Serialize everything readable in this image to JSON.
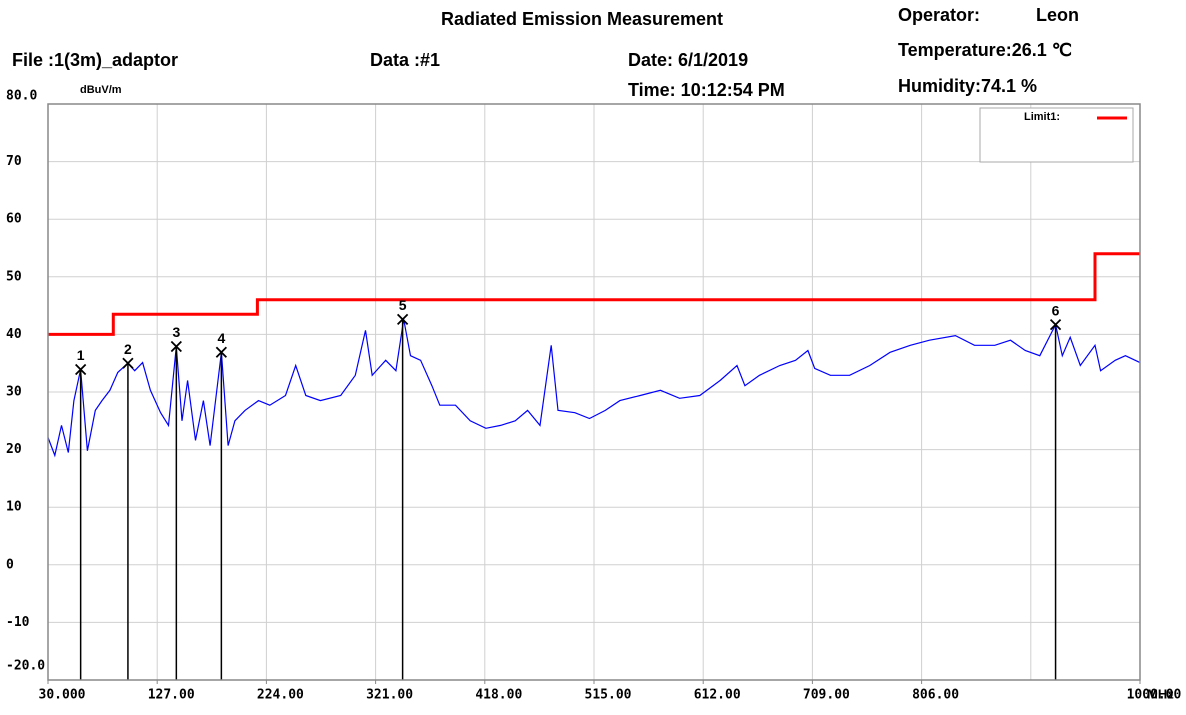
{
  "chart_data": {
    "type": "line",
    "title": "Radiated Emission Measurement",
    "header": {
      "file": "File :1(3m)_adaptor",
      "data": "Data :#1",
      "date": "Date: 6/1/2019",
      "time": "Time: 10:12:54 PM",
      "operator_label": "Operator:",
      "operator": "Leon",
      "temperature": "Temperature:26.1 ℃",
      "humidity": "Humidity:74.1 %"
    },
    "y_label": "dBuV/m",
    "x_label": "MHz",
    "xlim": [
      30,
      1000
    ],
    "ylim": [
      -20,
      80
    ],
    "yticks": [
      {
        "value": 80,
        "label": "80.0"
      },
      70,
      60,
      50,
      40,
      30,
      20,
      10,
      0,
      -10,
      {
        "value": -20,
        "label": "-20.0"
      }
    ],
    "xgrid": [
      30,
      127,
      224,
      321,
      418,
      515,
      612,
      709,
      806,
      903,
      1000
    ],
    "xticks": [
      {
        "value": 30,
        "label": "30.000"
      },
      {
        "value": 127,
        "label": "127.00"
      },
      {
        "value": 224,
        "label": "224.00"
      },
      {
        "value": 321,
        "label": "321.00"
      },
      {
        "value": 418,
        "label": "418.00"
      },
      {
        "value": 515,
        "label": "515.00"
      },
      {
        "value": 612,
        "label": "612.00"
      },
      {
        "value": 709,
        "label": "709.00"
      },
      {
        "value": 806,
        "label": "806.00"
      },
      {
        "value": 1000,
        "label": "1000.00"
      }
    ],
    "grid": true,
    "legend": "top-right",
    "series": [
      {
        "color": "#0000ff",
        "x": [
          30,
          36,
          42,
          48,
          53,
          59,
          65,
          72,
          78,
          85,
          92,
          101,
          107,
          114,
          121,
          130,
          137,
          144,
          149,
          154,
          161,
          168,
          174,
          184,
          190,
          196,
          205,
          217,
          227,
          241,
          250,
          259,
          272,
          290,
          303,
          312,
          318,
          330,
          339,
          346,
          352,
          361,
          371,
          378,
          392,
          405,
          419,
          432,
          445,
          456,
          467,
          477,
          483,
          498,
          511,
          525,
          538,
          556,
          574,
          591,
          609,
          627,
          642,
          649,
          662,
          680,
          694,
          705,
          711,
          725,
          742,
          760,
          778,
          796,
          813,
          836,
          853,
          871,
          885,
          898,
          911,
          925,
          931,
          938,
          947,
          960,
          965,
          978,
          987,
          1000
        ],
        "values": [
          22.1,
          19.0,
          24.2,
          19.5,
          28.5,
          33.9,
          19.8,
          26.8,
          28.5,
          30.3,
          33.4,
          35.0,
          33.7,
          35.1,
          30.3,
          26.4,
          24.2,
          37.9,
          25.0,
          32.0,
          21.6,
          28.5,
          20.7,
          36.9,
          20.7,
          25.0,
          26.8,
          28.5,
          27.7,
          29.4,
          34.6,
          29.4,
          28.5,
          29.4,
          32.9,
          40.7,
          32.9,
          35.5,
          33.7,
          42.6,
          36.3,
          35.5,
          31.1,
          27.7,
          27.7,
          25.0,
          23.7,
          24.2,
          25.0,
          26.8,
          24.2,
          38.1,
          26.8,
          26.4,
          25.4,
          26.8,
          28.5,
          29.4,
          30.3,
          28.9,
          29.4,
          32.0,
          34.6,
          31.1,
          32.9,
          34.6,
          35.5,
          37.2,
          34.1,
          32.9,
          32.9,
          34.6,
          36.9,
          38.1,
          39.0,
          39.8,
          38.1,
          38.1,
          39.0,
          37.2,
          36.3,
          41.7,
          36.3,
          39.5,
          34.6,
          38.1,
          33.7,
          35.5,
          36.3,
          35.1
        ]
      },
      {
        "name": "Limit1:",
        "color": "#ff0000",
        "x": [
          30,
          88,
          88,
          216,
          216,
          960,
          960,
          1000
        ],
        "values": [
          40,
          40,
          43.5,
          43.5,
          46,
          46,
          54,
          54
        ]
      }
    ],
    "markers": {
      "labels": [
        "1",
        "2",
        "3",
        "4",
        "5",
        "6"
      ],
      "x": [
        59,
        101,
        144,
        184,
        345,
        925
      ],
      "values": [
        33.9,
        35.0,
        37.9,
        36.9,
        42.6,
        41.7
      ]
    }
  }
}
